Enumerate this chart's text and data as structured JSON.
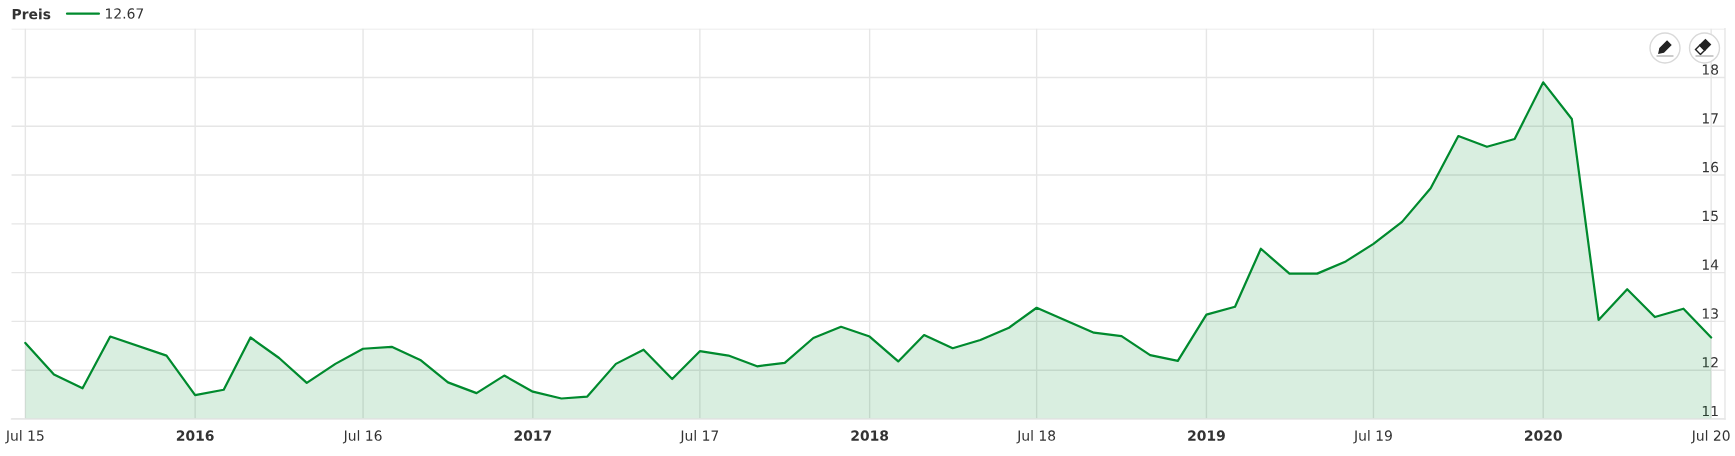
{
  "chart_data": {
    "type": "area",
    "legend_title": "Preis",
    "legend": "top left",
    "grid": true,
    "x": [
      "2015-07",
      "2015-08",
      "2015-09",
      "2015-10",
      "2015-12",
      "2016-01",
      "2016-02",
      "2016-03",
      "2016-04",
      "2016-05",
      "2016-06",
      "2016-07",
      "2016-08",
      "2016-09",
      "2016-10",
      "2016-11",
      "2016-12",
      "2017-01",
      "2017-02",
      "2017-03",
      "2017-04",
      "2017-05",
      "2017-06",
      "2017-07",
      "2017-08",
      "2017-09",
      "2017-10",
      "2017-11",
      "2017-12",
      "2018-01",
      "2018-02",
      "2018-03",
      "2018-04",
      "2018-05",
      "2018-06",
      "2018-07",
      "2018-09",
      "2018-10",
      "2018-11",
      "2018-12",
      "2019-01",
      "2019-02",
      "2019-03",
      "2019-04",
      "2019-05",
      "2019-06",
      "2019-07",
      "2019-08",
      "2019-09",
      "2019-10",
      "2019-11",
      "2019-12",
      "2020-01",
      "2020-02",
      "2020-03",
      "2020-04",
      "2020-05",
      "2020-06",
      "2020-07"
    ],
    "series": [
      {
        "name": "12.67",
        "color": "#008a2e",
        "values": [
          12.56,
          11.91,
          11.63,
          12.69,
          12.3,
          11.49,
          11.6,
          12.67,
          12.25,
          11.74,
          12.13,
          12.44,
          12.48,
          12.21,
          11.75,
          11.53,
          11.89,
          11.56,
          11.42,
          11.46,
          12.13,
          12.42,
          11.82,
          12.39,
          12.3,
          12.08,
          12.15,
          12.66,
          12.89,
          12.69,
          12.18,
          12.72,
          12.45,
          12.62,
          12.87,
          13.28,
          12.77,
          12.7,
          12.31,
          12.19,
          13.14,
          13.3,
          14.49,
          13.98,
          13.98,
          14.23,
          14.59,
          15.04,
          15.73,
          16.8,
          16.58,
          16.74,
          17.9,
          17.15,
          13.03,
          13.66,
          13.09,
          13.26,
          12.67
        ]
      }
    ],
    "xlim": [
      "2015-06-16",
      "2020-07-16"
    ],
    "xticks": [
      {
        "value": "2015-07-01",
        "label": "Jul 15"
      },
      {
        "value": "2016-01-01",
        "label": "2016"
      },
      {
        "value": "2016-07-01",
        "label": "Jul 16"
      },
      {
        "value": "2017-01-01",
        "label": "2017"
      },
      {
        "value": "2017-07-01",
        "label": "Jul 17"
      },
      {
        "value": "2018-01-01",
        "label": "2018"
      },
      {
        "value": "2018-07-01",
        "label": "Jul 18"
      },
      {
        "value": "2019-01-01",
        "label": "2019"
      },
      {
        "value": "2019-07-01",
        "label": "Jul 19"
      },
      {
        "value": "2020-01-01",
        "label": "2020"
      },
      {
        "value": "2020-07-01",
        "label": "Jul 20"
      }
    ],
    "ylim": [
      11,
      19
    ],
    "yticks": [
      11,
      12,
      13,
      14,
      15,
      16,
      17,
      18,
      {
        "value": 19,
        "label": null
      }
    ]
  }
}
